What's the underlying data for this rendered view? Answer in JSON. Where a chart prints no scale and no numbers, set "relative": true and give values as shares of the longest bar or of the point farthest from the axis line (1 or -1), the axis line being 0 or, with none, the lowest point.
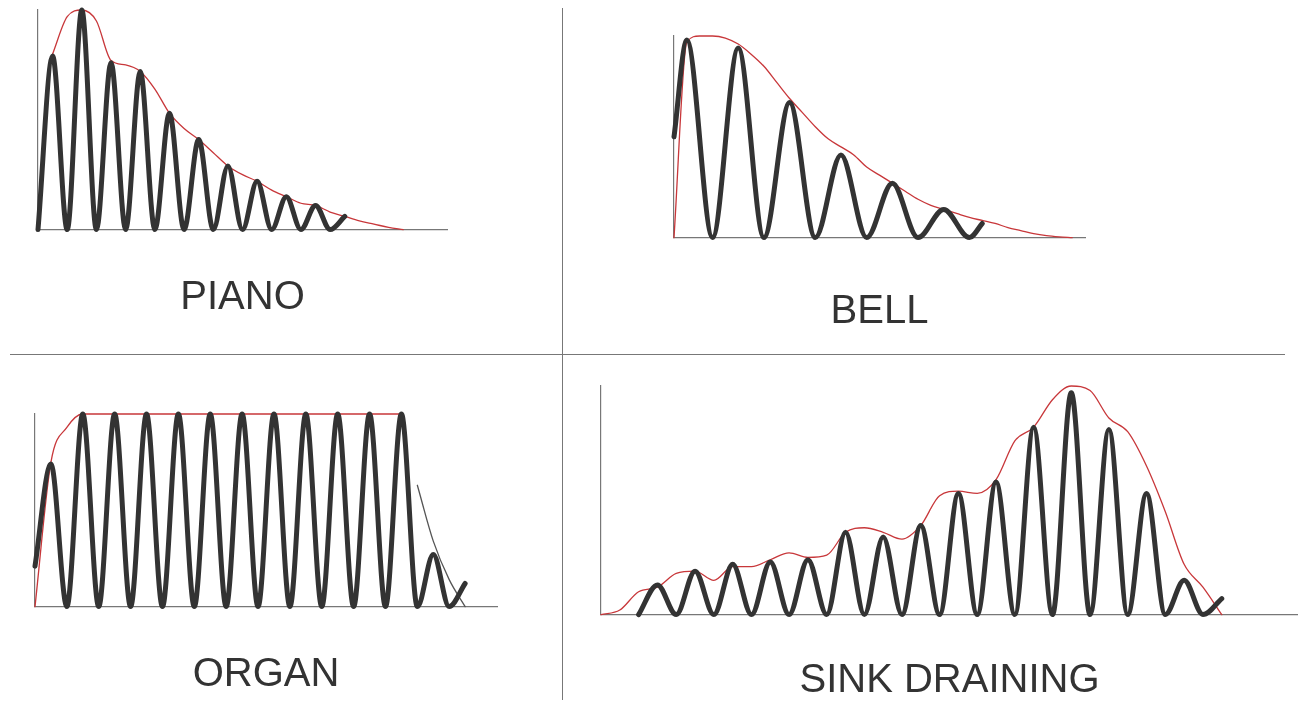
{
  "chart_data": [
    {
      "type": "line",
      "title": "PIANO",
      "relative": true,
      "categories": [
        null,
        null,
        null,
        null,
        null,
        null,
        null,
        null,
        null,
        null,
        null,
        null,
        null,
        null,
        null,
        null,
        null,
        null,
        null,
        null,
        null,
        null,
        null,
        null,
        null,
        null,
        null,
        null,
        null
      ],
      "series": [
        {
          "color": "#333333",
          "values": [
            0,
            0.79,
            0,
            1,
            0,
            0.76,
            0,
            0.72,
            0,
            0.53,
            0,
            0.41,
            0,
            0.29,
            0,
            0.22,
            0,
            0.15,
            0,
            0.11,
            0,
            0.06,
            null,
            null,
            null,
            null,
            null,
            null,
            null
          ]
        },
        {
          "color": "#c8373a",
          "values": [
            null,
            0.8,
            0.97,
            1,
            0.95,
            0.77,
            0.75,
            0.72,
            0.64,
            0.53,
            0.46,
            0.41,
            0.35,
            0.29,
            0.25,
            0.22,
            0.18,
            0.15,
            0.12,
            0.11,
            0.08,
            0.06,
            0.04,
            0.025,
            0.01,
            0,
            null,
            null,
            null
          ]
        }
      ]
    },
    {
      "type": "line",
      "title": "BELL",
      "relative": true,
      "categories": [
        null,
        null,
        null,
        null,
        null,
        null,
        null,
        null,
        null,
        null,
        null,
        null,
        null,
        null,
        null,
        null,
        null,
        null,
        null,
        null,
        null,
        null,
        null,
        null,
        null,
        null,
        null,
        null,
        null,
        null,
        null,
        null,
        null
      ],
      "series": [
        {
          "color": "#333333",
          "values": [
            0.5,
            0.98,
            null,
            0,
            null,
            0.94,
            null,
            0,
            null,
            0.67,
            null,
            0,
            null,
            0.41,
            null,
            0,
            null,
            0.27,
            null,
            0,
            null,
            0.14,
            null,
            0,
            0.07,
            null,
            null,
            null,
            null,
            null,
            null,
            null,
            null
          ]
        },
        {
          "color": "#c8373a",
          "values": [
            0,
            0.97,
            1,
            1,
            0.99,
            0.96,
            0.91,
            0.85,
            0.77,
            0.69,
            0.62,
            0.55,
            0.49,
            0.45,
            0.41,
            0.35,
            0.31,
            0.27,
            0.23,
            0.19,
            0.16,
            0.14,
            0.12,
            0.1,
            0.085,
            0.07,
            0.05,
            0.035,
            0.02,
            0.01,
            0.004,
            0,
            null
          ]
        }
      ]
    },
    {
      "type": "line",
      "title": "ORGAN",
      "relative": true,
      "categories": [
        null,
        null,
        null,
        null,
        null,
        null,
        null,
        null,
        null,
        null,
        null,
        null,
        null,
        null,
        null,
        null,
        null,
        null,
        null,
        null,
        null,
        null,
        null,
        null,
        null,
        null,
        null,
        null,
        null,
        null
      ],
      "series": [
        {
          "color": "#333333",
          "values": [
            0.21,
            0.74,
            0,
            1,
            0,
            1,
            0,
            1,
            0,
            1,
            0,
            1,
            0,
            1,
            0,
            1,
            0,
            1,
            0,
            1,
            0,
            1,
            0,
            1,
            0,
            0.27,
            0,
            0.12,
            null,
            null
          ]
        },
        {
          "color": "#c8373a",
          "values": [
            0,
            0.75,
            0.93,
            1,
            1,
            1,
            1,
            1,
            1,
            1,
            1,
            1,
            1,
            1,
            1,
            1,
            1,
            1,
            1,
            1,
            1,
            1,
            1,
            1,
            null,
            null,
            null,
            null,
            null,
            null
          ]
        },
        {
          "color": "#555555",
          "values": [
            null,
            null,
            null,
            null,
            null,
            null,
            null,
            null,
            null,
            null,
            null,
            null,
            null,
            null,
            null,
            null,
            null,
            null,
            null,
            null,
            null,
            null,
            null,
            null,
            0.63,
            0.34,
            0.14,
            0,
            null,
            null
          ]
        }
      ]
    },
    {
      "type": "line",
      "title": "SINK DRAINING",
      "relative": true,
      "categories": [
        null,
        null,
        null,
        null,
        null,
        null,
        null,
        null,
        null,
        null,
        null,
        null,
        null,
        null,
        null,
        null,
        null,
        null,
        null,
        null,
        null,
        null,
        null,
        null,
        null,
        null,
        null,
        null,
        null,
        null,
        null,
        null,
        null,
        null,
        null,
        null,
        null,
        null
      ],
      "series": [
        {
          "color": "#333333",
          "values": [
            null,
            null,
            0,
            0.13,
            0,
            0.19,
            0,
            0.22,
            0,
            0.23,
            0,
            0.24,
            0,
            0.36,
            0,
            0.34,
            0,
            0.39,
            0,
            0.53,
            0,
            0.58,
            0,
            0.82,
            0,
            0.97,
            0,
            0.81,
            0,
            0.53,
            0,
            0.15,
            0,
            0.07,
            null,
            null,
            null,
            null
          ]
        },
        {
          "color": "#c8373a",
          "values": [
            0,
            0.02,
            0.1,
            0.12,
            0.18,
            0.19,
            0.15,
            0.21,
            0.21,
            0.24,
            0.27,
            0.25,
            0.26,
            0.36,
            0.38,
            0.36,
            0.33,
            0.39,
            0.52,
            0.54,
            0.53,
            0.59,
            0.76,
            0.82,
            0.94,
            1,
            0.98,
            0.86,
            0.8,
            0.65,
            0.45,
            0.22,
            0.12,
            0,
            null,
            null,
            null,
            null
          ]
        }
      ]
    }
  ]
}
